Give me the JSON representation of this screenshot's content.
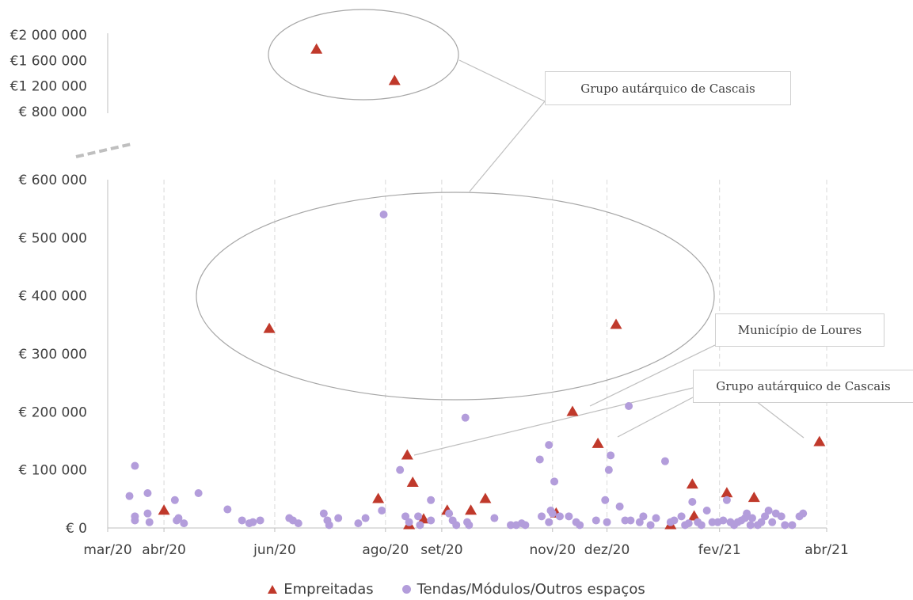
{
  "chart_data": {
    "type": "scatter",
    "title": "",
    "xlabel": "",
    "ylabel": "",
    "x_ticks": [
      "mar/20",
      "abr/20",
      "jun/20",
      "ago/20",
      "set/20",
      "nov/20",
      "dez/20",
      "fev/21",
      "abr/21"
    ],
    "y_ticks_lower": [
      "€ 0",
      "€ 100 000",
      "€ 200 000",
      "€ 300 000",
      "€ 400 000",
      "€ 500 000",
      "€ 600 000"
    ],
    "y_ticks_upper": [
      "€ 800 000",
      "€1 200 000",
      "€1 600 000",
      "€2 000 000"
    ],
    "ylim_lower": [
      0,
      600000
    ],
    "ylim_upper": [
      800000,
      2000000
    ],
    "xlim": [
      "2020-03-01",
      "2021-04-01"
    ],
    "axis_break": true,
    "grid": "vertical dashed",
    "legend_position": "bottom",
    "series": [
      {
        "name": "Empreitadas",
        "marker": "triangle",
        "color": "#c0392b",
        "points": [
          [
            "2020-04-01",
            30000
          ],
          [
            "2020-05-29",
            343000
          ],
          [
            "2020-06-24",
            1770000
          ],
          [
            "2020-07-28",
            50000
          ],
          [
            "2020-08-06",
            1280000
          ],
          [
            "2020-08-13",
            125000
          ],
          [
            "2020-08-14",
            5000
          ],
          [
            "2020-08-16",
            78000
          ],
          [
            "2020-08-22",
            15000
          ],
          [
            "2020-09-04",
            30000
          ],
          [
            "2020-09-17",
            30000
          ],
          [
            "2020-09-25",
            50000
          ],
          [
            "2020-11-03",
            25000
          ],
          [
            "2020-11-12",
            200000
          ],
          [
            "2020-11-26",
            145000
          ],
          [
            "2020-12-06",
            350000
          ],
          [
            "2021-01-05",
            5000
          ],
          [
            "2021-01-17",
            75000
          ],
          [
            "2021-01-18",
            20000
          ],
          [
            "2021-02-05",
            60000
          ],
          [
            "2021-02-20",
            52000
          ],
          [
            "2021-03-28",
            148000
          ]
        ]
      },
      {
        "name": "Tendas/Módulos/Outros espaços",
        "marker": "circle",
        "color": "#b39ddb",
        "points": [
          [
            "2020-03-13",
            55000
          ],
          [
            "2020-03-16",
            107000
          ],
          [
            "2020-03-16",
            20000
          ],
          [
            "2020-03-16",
            13000
          ],
          [
            "2020-03-23",
            60000
          ],
          [
            "2020-03-23",
            25000
          ],
          [
            "2020-03-24",
            10000
          ],
          [
            "2020-04-07",
            48000
          ],
          [
            "2020-04-08",
            13000
          ],
          [
            "2020-04-09",
            17000
          ],
          [
            "2020-04-12",
            8000
          ],
          [
            "2020-04-20",
            60000
          ],
          [
            "2020-05-06",
            32000
          ],
          [
            "2020-05-14",
            13000
          ],
          [
            "2020-05-18",
            8000
          ],
          [
            "2020-05-20",
            10000
          ],
          [
            "2020-05-24",
            13000
          ],
          [
            "2020-06-09",
            17000
          ],
          [
            "2020-06-11",
            13000
          ],
          [
            "2020-06-14",
            8000
          ],
          [
            "2020-06-28",
            25000
          ],
          [
            "2020-06-30",
            13000
          ],
          [
            "2020-07-01",
            5000
          ],
          [
            "2020-07-06",
            17000
          ],
          [
            "2020-07-17",
            8000
          ],
          [
            "2020-07-21",
            17000
          ],
          [
            "2020-07-30",
            30000
          ],
          [
            "2020-07-31",
            540000
          ],
          [
            "2020-08-09",
            100000
          ],
          [
            "2020-08-12",
            20000
          ],
          [
            "2020-08-14",
            10000
          ],
          [
            "2020-08-19",
            20000
          ],
          [
            "2020-08-20",
            5000
          ],
          [
            "2020-08-26",
            48000
          ],
          [
            "2020-08-26",
            13000
          ],
          [
            "2020-09-05",
            25000
          ],
          [
            "2020-09-07",
            13000
          ],
          [
            "2020-09-09",
            5000
          ],
          [
            "2020-09-14",
            190000
          ],
          [
            "2020-09-15",
            10000
          ],
          [
            "2020-09-16",
            5000
          ],
          [
            "2020-09-30",
            17000
          ],
          [
            "2020-10-09",
            5000
          ],
          [
            "2020-10-12",
            5000
          ],
          [
            "2020-10-15",
            8000
          ],
          [
            "2020-10-17",
            5000
          ],
          [
            "2020-10-25",
            118000
          ],
          [
            "2020-10-26",
            20000
          ],
          [
            "2020-10-30",
            143000
          ],
          [
            "2020-10-30",
            10000
          ],
          [
            "2020-10-31",
            30000
          ],
          [
            "2020-11-01",
            25000
          ],
          [
            "2020-11-02",
            80000
          ],
          [
            "2020-11-05",
            20000
          ],
          [
            "2020-11-10",
            20000
          ],
          [
            "2020-11-14",
            10000
          ],
          [
            "2020-11-16",
            5000
          ],
          [
            "2020-11-25",
            13000
          ],
          [
            "2020-11-30",
            48000
          ],
          [
            "2020-12-01",
            10000
          ],
          [
            "2020-12-02",
            100000
          ],
          [
            "2020-12-03",
            125000
          ],
          [
            "2020-12-08",
            37000
          ],
          [
            "2020-12-11",
            13000
          ],
          [
            "2020-12-13",
            210000
          ],
          [
            "2020-12-14",
            13000
          ],
          [
            "2020-12-19",
            10000
          ],
          [
            "2020-12-21",
            20000
          ],
          [
            "2020-12-25",
            5000
          ],
          [
            "2020-12-28",
            17000
          ],
          [
            "2021-01-02",
            115000
          ],
          [
            "2021-01-05",
            10000
          ],
          [
            "2021-01-07",
            13000
          ],
          [
            "2021-01-11",
            20000
          ],
          [
            "2021-01-13",
            5000
          ],
          [
            "2021-01-15",
            8000
          ],
          [
            "2021-01-17",
            45000
          ],
          [
            "2021-01-20",
            10000
          ],
          [
            "2021-01-22",
            5000
          ],
          [
            "2021-01-25",
            30000
          ],
          [
            "2021-01-28",
            10000
          ],
          [
            "2021-01-31",
            10000
          ],
          [
            "2021-02-03",
            13000
          ],
          [
            "2021-02-05",
            48000
          ],
          [
            "2021-02-07",
            10000
          ],
          [
            "2021-02-09",
            5000
          ],
          [
            "2021-02-11",
            10000
          ],
          [
            "2021-02-13",
            13000
          ],
          [
            "2021-02-15",
            17000
          ],
          [
            "2021-02-16",
            25000
          ],
          [
            "2021-02-18",
            5000
          ],
          [
            "2021-02-19",
            17000
          ],
          [
            "2021-02-22",
            5000
          ],
          [
            "2021-02-24",
            10000
          ],
          [
            "2021-02-26",
            20000
          ],
          [
            "2021-02-28",
            30000
          ],
          [
            "2021-03-02",
            10000
          ],
          [
            "2021-03-04",
            25000
          ],
          [
            "2021-03-07",
            20000
          ],
          [
            "2021-03-09",
            5000
          ],
          [
            "2021-03-13",
            5000
          ],
          [
            "2021-03-17",
            20000
          ],
          [
            "2021-03-19",
            25000
          ]
        ]
      }
    ],
    "annotations": [
      "Grupo autárquico de Cascais",
      "Município de Loures",
      "Grupo autárquico de Cascais"
    ]
  }
}
